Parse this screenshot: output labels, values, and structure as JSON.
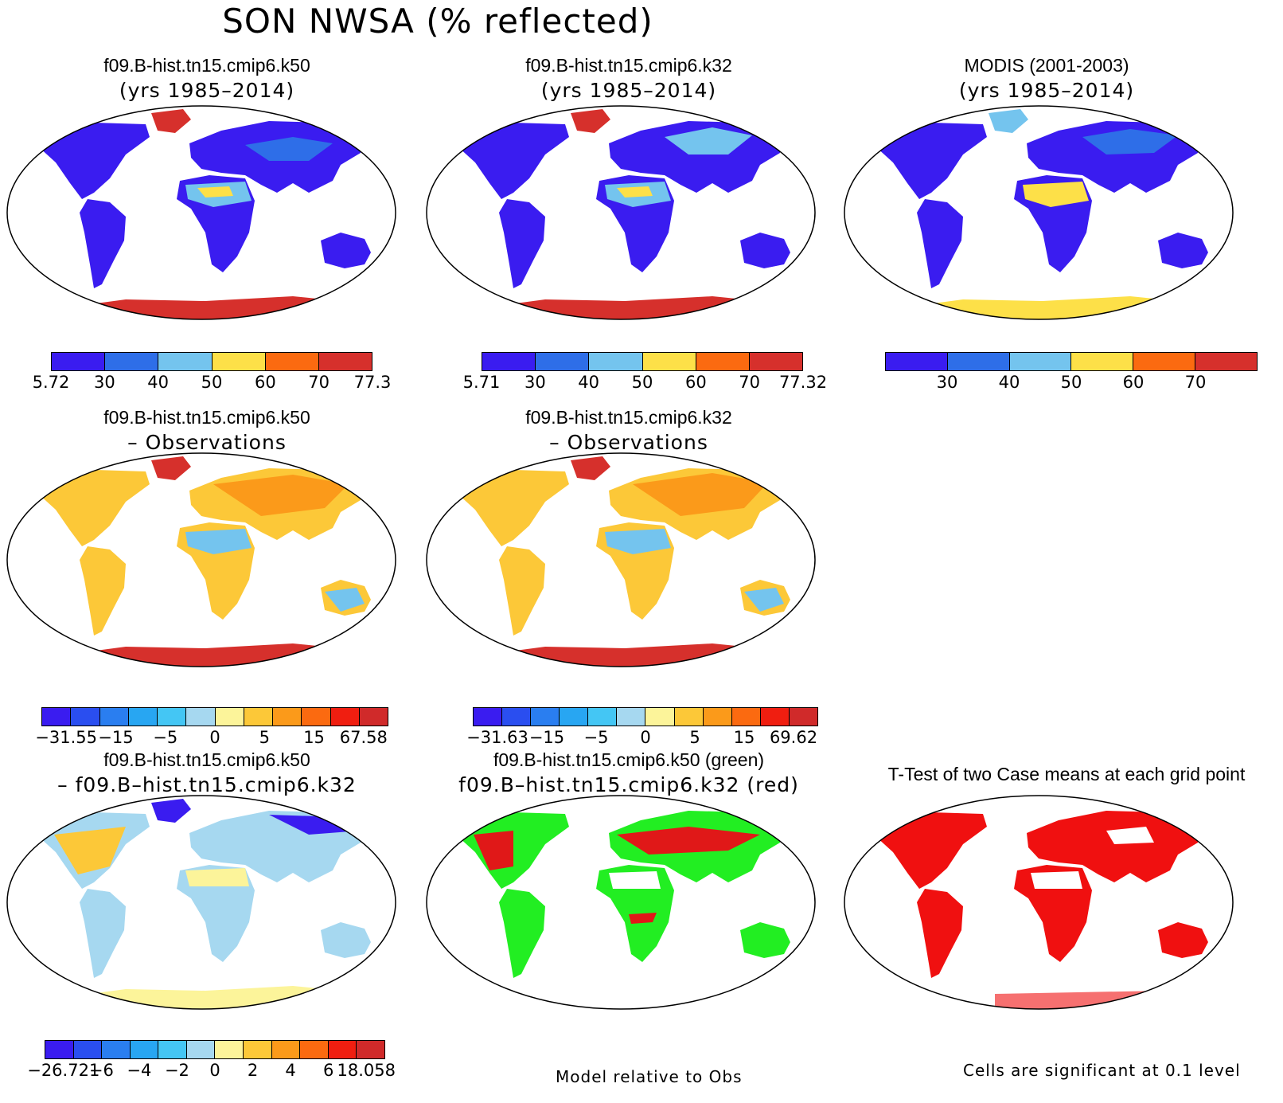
{
  "main_title": "SON NWSA (% reflected)",
  "panels": [
    {
      "line1": "f09.B-hist.tn15.cmip6.k50",
      "line2": "(yrs 1985–2014)"
    },
    {
      "line1": "f09.B-hist.tn15.cmip6.k32",
      "line2": "(yrs 1985–2014)"
    },
    {
      "line1": "MODIS (2001-2003)",
      "line2": "(yrs 1985–2014)"
    },
    {
      "line1": "f09.B-hist.tn15.cmip6.k50",
      "line2": "– Observations"
    },
    {
      "line1": "f09.B-hist.tn15.cmip6.k32",
      "line2": "– Observations"
    },
    {
      "line1": "f09.B-hist.tn15.cmip6.k50",
      "line2": "– f09.B–hist.tn15.cmip6.k32"
    },
    {
      "line1": "f09.B-hist.tn15.cmip6.k50 (green)",
      "line2": "f09.B–hist.tn15.cmip6.k32 (red)"
    },
    {
      "line1": "T-Test of two Case means at each grid point",
      "line2": ""
    }
  ],
  "colorbars": {
    "cb1": {
      "colors": [
        "#3a1cf0",
        "#2e6ee8",
        "#74c4ee",
        "#fde048",
        "#fb6a10",
        "#d6302c"
      ],
      "labels": [
        "5.72",
        "30",
        "40",
        "50",
        "60",
        "70",
        "77.3"
      ]
    },
    "cb2": {
      "colors": [
        "#3a1cf0",
        "#2e6ee8",
        "#74c4ee",
        "#fde048",
        "#fb6a10",
        "#d6302c"
      ],
      "labels": [
        "5.71",
        "30",
        "40",
        "50",
        "60",
        "70",
        "77.32"
      ]
    },
    "cb3": {
      "colors": [
        "#3a1cf0",
        "#2e6ee8",
        "#74c4ee",
        "#fde048",
        "#fb6a10",
        "#d6302c"
      ],
      "labels": [
        "30",
        "40",
        "50",
        "60",
        "70"
      ]
    },
    "cb4": {
      "colors": [
        "#3a1cf0",
        "#2a4ef0",
        "#2a7ef0",
        "#28a6f2",
        "#44c6f4",
        "#a6d8f0",
        "#fcf49a",
        "#fcc838",
        "#fb9a1a",
        "#fb6a10",
        "#f01e10",
        "#d02a2a"
      ],
      "labels": [
        "−31.55",
        "−15",
        "−5",
        "0",
        "5",
        "15",
        "67.58"
      ]
    },
    "cb5": {
      "colors": [
        "#3a1cf0",
        "#2a4ef0",
        "#2a7ef0",
        "#28a6f2",
        "#44c6f4",
        "#a6d8f0",
        "#fcf49a",
        "#fcc838",
        "#fb9a1a",
        "#fb6a10",
        "#f01e10",
        "#d02a2a"
      ],
      "labels": [
        "−31.63",
        "−15",
        "−5",
        "0",
        "5",
        "15",
        "69.62"
      ]
    },
    "cb6": {
      "colors": [
        "#3a1cf0",
        "#2a4ef0",
        "#2a7ef0",
        "#28a6f2",
        "#44c6f4",
        "#a6d8f0",
        "#fcf49a",
        "#fcc838",
        "#fb9a1a",
        "#fb6a10",
        "#f01e10",
        "#d02a2a"
      ],
      "labels": [
        "−26.721",
        "−6",
        "−4",
        "−2",
        "0",
        "2",
        "4",
        "6",
        "18.058"
      ]
    }
  },
  "notes": {
    "model_relative": "Model relative to Obs",
    "significance": "Cells are significant at 0.1 level"
  },
  "map_colors": {
    "blue": "#3a1cf0",
    "mid_blue": "#2e6ee8",
    "light_blue": "#74c4ee",
    "yellow": "#fde048",
    "orange": "#fb9a1a",
    "red": "#d6302c",
    "pale_yellow": "#fcf49a",
    "pale_blue": "#a6d8f0",
    "green": "#22ee22",
    "sig_red": "#f01010"
  }
}
